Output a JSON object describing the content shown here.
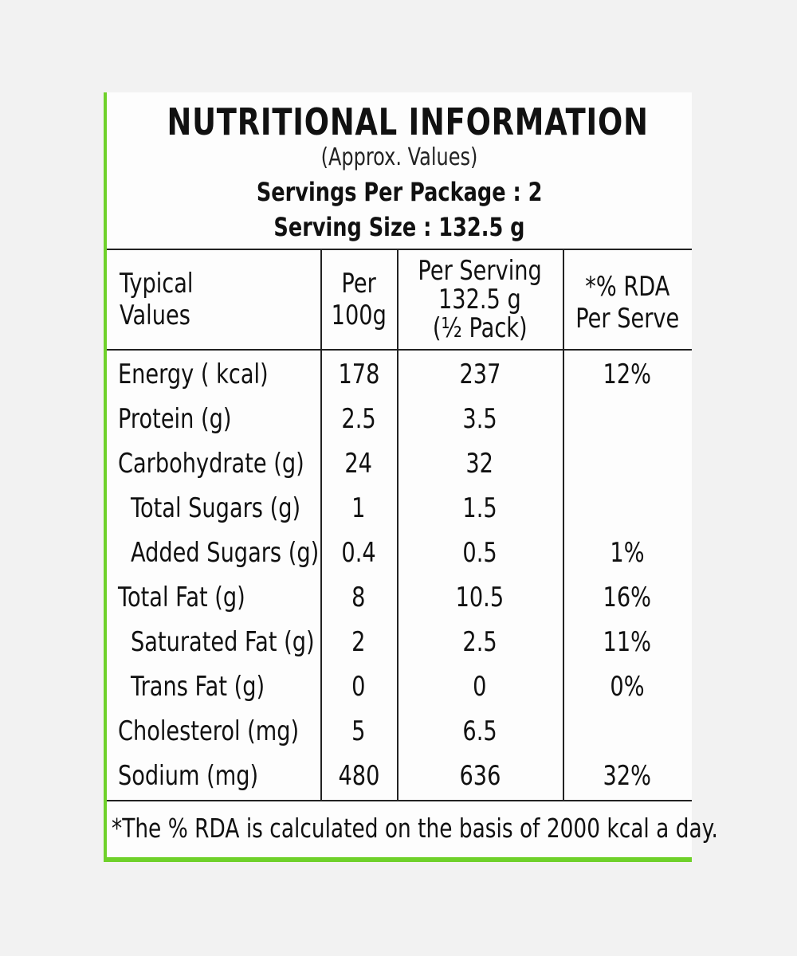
{
  "title": "NUTRITIONAL INFORMATION",
  "subtitle": "(Approx. Values)",
  "servings_per_package": "Servings Per Package : 2",
  "serving_size": "Serving Size : 132.5 g",
  "table": {
    "headers": {
      "typical_line1": "Typical",
      "typical_line2": "Values",
      "per100_line1": "Per",
      "per100_line2": "100g",
      "serving_line1": "Per Serving",
      "serving_line2": "132.5 g",
      "serving_line3": "(½ Pack)",
      "rda_line1": "*% RDA",
      "rda_line2": "Per Serve"
    },
    "rows": [
      {
        "name": "Energy ( kcal)",
        "per100": "178",
        "serving": "237",
        "rda": "12%"
      },
      {
        "name": "Protein (g)",
        "per100": "2.5",
        "serving": "3.5",
        "rda": ""
      },
      {
        "name": "Carbohydrate (g)",
        "per100": "24",
        "serving": "32",
        "rda": ""
      },
      {
        "name": "Total Sugars (g)",
        "per100": "1",
        "serving": "1.5",
        "rda": ""
      },
      {
        "name": "Added Sugars (g)",
        "per100": "0.4",
        "serving": "0.5",
        "rda": "1%"
      },
      {
        "name": "Total Fat (g)",
        "per100": "8",
        "serving": "10.5",
        "rda": "16%"
      },
      {
        "name": "Saturated Fat (g)",
        "per100": "2",
        "serving": "2.5",
        "rda": "11%"
      },
      {
        "name": "Trans Fat (g)",
        "per100": "0",
        "serving": "0",
        "rda": "0%"
      },
      {
        "name": "Cholesterol (mg)",
        "per100": "5",
        "serving": "6.5",
        "rda": ""
      },
      {
        "name": "Sodium (mg)",
        "per100": "480",
        "serving": "636",
        "rda": "32%"
      }
    ]
  },
  "footnote": "*The % RDA is calculated on the basis of 2000 kcal a day.",
  "colors": {
    "accent": "#6fd12a",
    "background": "#f2f2f2"
  }
}
